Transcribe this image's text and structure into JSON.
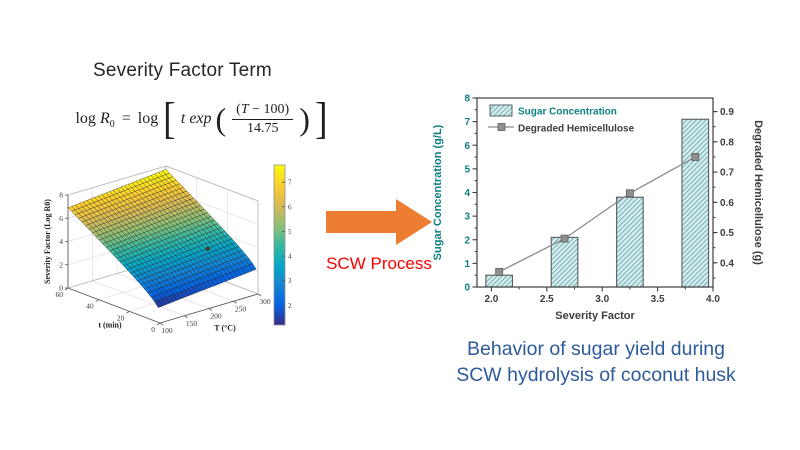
{
  "slide": {
    "title": "Severity Factor Term",
    "arrow_label": "SCW Process",
    "caption_line1": "Behavior of sugar yield during",
    "caption_line2": "SCW hydrolysis of coconut husk",
    "colors": {
      "title": "#262626",
      "arrow": "#ED7D31",
      "arrow_label": "#FF0000",
      "caption": "#2E5B9B"
    }
  },
  "formula": {
    "log1": "log",
    "R": "R",
    "sub0": "0",
    "eq": "=",
    "log2": "log",
    "lbracket": "[",
    "t": "t",
    "exp": "exp",
    "lparen": "(",
    "num_open": "(",
    "num_var": "T",
    "num_rest": " − 100)",
    "den": "14.75",
    "rparen": ")",
    "rbracket": "]"
  },
  "chart_data": [
    {
      "type": "surface",
      "name": "severity-factor-surface",
      "xlabel": "T (°C)",
      "ylabel": "t (min)",
      "zlabel": "Severity Factor (Log R0)",
      "x_ticks": [
        100,
        150,
        200,
        250,
        300
      ],
      "y_ticks": [
        0,
        20,
        40,
        60
      ],
      "z_ticks": [
        0,
        2,
        4,
        6,
        8
      ],
      "x_range": [
        100,
        300
      ],
      "y_range": [
        0,
        60
      ],
      "z_range": [
        0,
        8
      ],
      "colormap": "parula",
      "colorbar_ticks": [
        2,
        3,
        4,
        5,
        6,
        7
      ],
      "color_domain": [
        1.2,
        7.7
      ],
      "surface_formula": "log R0 = log10(t · exp((T − 100)/14.75))",
      "marker_point": {
        "u": 0.75,
        "v": 0.28
      }
    },
    {
      "type": "bar-line",
      "name": "sugar-yield-chart",
      "x": [
        2.07,
        2.66,
        3.25,
        3.84
      ],
      "series": [
        {
          "name": "Sugar Concentration",
          "type": "bar",
          "axis": "left",
          "values": [
            0.5,
            2.1,
            3.8,
            7.1
          ]
        },
        {
          "name": "Degraded Hemicellulose",
          "type": "line",
          "axis": "right",
          "values": [
            0.37,
            0.48,
            0.63,
            0.75
          ]
        }
      ],
      "xlabel": "Severity Factor",
      "ylabel_left": "Sugar Concentration (g/L)",
      "ylabel_right": "Degraded Hemicellulose (g)",
      "x_ticks": [
        2.0,
        2.5,
        3.0,
        3.5,
        4.0
      ],
      "x_range": [
        1.87,
        4.0
      ],
      "yleft_ticks": [
        0,
        1,
        2,
        3,
        4,
        5,
        6,
        7,
        8
      ],
      "yleft_range": [
        0,
        8
      ],
      "yright_ticks": [
        0.4,
        0.5,
        0.6,
        0.7,
        0.8,
        0.9
      ],
      "yright_range": [
        0.32,
        0.945
      ],
      "bar_width": 0.24,
      "legend_position": "top-left-inside",
      "colors": {
        "bar_fill": "#d9edef",
        "bar_hatch": "#6fb0b5",
        "bar_edge": "#555f60",
        "line": "#8a8a8a",
        "marker_fill": "#8f8f8f",
        "marker_edge": "#5e5e5e",
        "teal_text": "#0e7f80",
        "dark_text": "#3d3d3d"
      }
    }
  ]
}
